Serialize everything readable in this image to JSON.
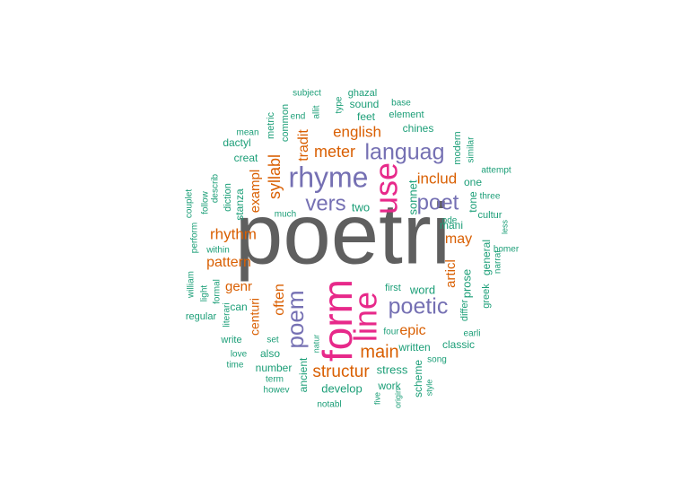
{
  "palette": {
    "gray": "#5f5f5f",
    "pink": "#e7298a",
    "purple": "#7570b3",
    "orange": "#d95f02",
    "teal": "#1b9e77"
  },
  "words": [
    {
      "text": "poetri",
      "color": "gray"
    },
    {
      "text": "form",
      "color": "pink"
    },
    {
      "text": "line",
      "color": "pink"
    },
    {
      "text": "use",
      "color": "pink"
    },
    {
      "text": "rhyme",
      "color": "purple"
    },
    {
      "text": "languag",
      "color": "purple"
    },
    {
      "text": "vers",
      "color": "purple"
    },
    {
      "text": "poet",
      "color": "purple"
    },
    {
      "text": "poem",
      "color": "purple"
    },
    {
      "text": "poetic",
      "color": "purple"
    },
    {
      "text": "structur",
      "color": "orange"
    },
    {
      "text": "main",
      "color": "orange"
    },
    {
      "text": "meter",
      "color": "orange"
    },
    {
      "text": "english",
      "color": "orange"
    },
    {
      "text": "includ",
      "color": "orange"
    },
    {
      "text": "syllabl",
      "color": "orange"
    },
    {
      "text": "tradit",
      "color": "orange"
    },
    {
      "text": "rhythm",
      "color": "orange"
    },
    {
      "text": "pattern",
      "color": "orange"
    },
    {
      "text": "exampl",
      "color": "orange"
    },
    {
      "text": "may",
      "color": "orange"
    },
    {
      "text": "epic",
      "color": "orange"
    },
    {
      "text": "articl",
      "color": "orange"
    },
    {
      "text": "often",
      "color": "orange"
    },
    {
      "text": "genr",
      "color": "orange"
    },
    {
      "text": "centuri",
      "color": "orange"
    },
    {
      "text": "two",
      "color": "teal"
    },
    {
      "text": "sonnet",
      "color": "teal"
    },
    {
      "text": "one",
      "color": "teal"
    },
    {
      "text": "tone",
      "color": "teal"
    },
    {
      "text": "mani",
      "color": "teal"
    },
    {
      "text": "prose",
      "color": "teal"
    },
    {
      "text": "word",
      "color": "teal"
    },
    {
      "text": "first",
      "color": "teal"
    },
    {
      "text": "general",
      "color": "teal"
    },
    {
      "text": "greek",
      "color": "teal"
    },
    {
      "text": "differ",
      "color": "teal"
    },
    {
      "text": "stanza",
      "color": "teal"
    },
    {
      "text": "dactyl",
      "color": "teal"
    },
    {
      "text": "creat",
      "color": "teal"
    },
    {
      "text": "metric",
      "color": "teal"
    },
    {
      "text": "common",
      "color": "teal"
    },
    {
      "text": "mean",
      "color": "teal"
    },
    {
      "text": "subject",
      "color": "teal"
    },
    {
      "text": "ghazal",
      "color": "teal"
    },
    {
      "text": "type",
      "color": "teal"
    },
    {
      "text": "sound",
      "color": "teal"
    },
    {
      "text": "end",
      "color": "teal"
    },
    {
      "text": "allit",
      "color": "teal"
    },
    {
      "text": "feet",
      "color": "teal"
    },
    {
      "text": "base",
      "color": "teal"
    },
    {
      "text": "element",
      "color": "teal"
    },
    {
      "text": "chines",
      "color": "teal"
    },
    {
      "text": "modern",
      "color": "teal"
    },
    {
      "text": "similar",
      "color": "teal"
    },
    {
      "text": "attempt",
      "color": "teal"
    },
    {
      "text": "three",
      "color": "teal"
    },
    {
      "text": "cultur",
      "color": "teal"
    },
    {
      "text": "ode",
      "color": "teal"
    },
    {
      "text": "less",
      "color": "teal"
    },
    {
      "text": "homer",
      "color": "teal"
    },
    {
      "text": "narrat",
      "color": "teal"
    },
    {
      "text": "couplet",
      "color": "teal"
    },
    {
      "text": "follow",
      "color": "teal"
    },
    {
      "text": "describ",
      "color": "teal"
    },
    {
      "text": "diction",
      "color": "teal"
    },
    {
      "text": "much",
      "color": "teal"
    },
    {
      "text": "perform",
      "color": "teal"
    },
    {
      "text": "within",
      "color": "teal"
    },
    {
      "text": "william",
      "color": "teal"
    },
    {
      "text": "light",
      "color": "teal"
    },
    {
      "text": "formal",
      "color": "teal"
    },
    {
      "text": "can",
      "color": "teal"
    },
    {
      "text": "regular",
      "color": "teal"
    },
    {
      "text": "literari",
      "color": "teal"
    },
    {
      "text": "write",
      "color": "teal"
    },
    {
      "text": "set",
      "color": "teal"
    },
    {
      "text": "love",
      "color": "teal"
    },
    {
      "text": "also",
      "color": "teal"
    },
    {
      "text": "time",
      "color": "teal"
    },
    {
      "text": "number",
      "color": "teal"
    },
    {
      "text": "term",
      "color": "teal"
    },
    {
      "text": "howev",
      "color": "teal"
    },
    {
      "text": "ancient",
      "color": "teal"
    },
    {
      "text": "develop",
      "color": "teal"
    },
    {
      "text": "notabl",
      "color": "teal"
    },
    {
      "text": "natur",
      "color": "teal"
    },
    {
      "text": "four",
      "color": "teal"
    },
    {
      "text": "written",
      "color": "teal"
    },
    {
      "text": "classic",
      "color": "teal"
    },
    {
      "text": "stress",
      "color": "teal"
    },
    {
      "text": "work",
      "color": "teal"
    },
    {
      "text": "scheme",
      "color": "teal"
    },
    {
      "text": "song",
      "color": "teal"
    },
    {
      "text": "style",
      "color": "teal"
    },
    {
      "text": "five",
      "color": "teal"
    },
    {
      "text": "origin",
      "color": "teal"
    },
    {
      "text": "earli",
      "color": "teal"
    }
  ]
}
